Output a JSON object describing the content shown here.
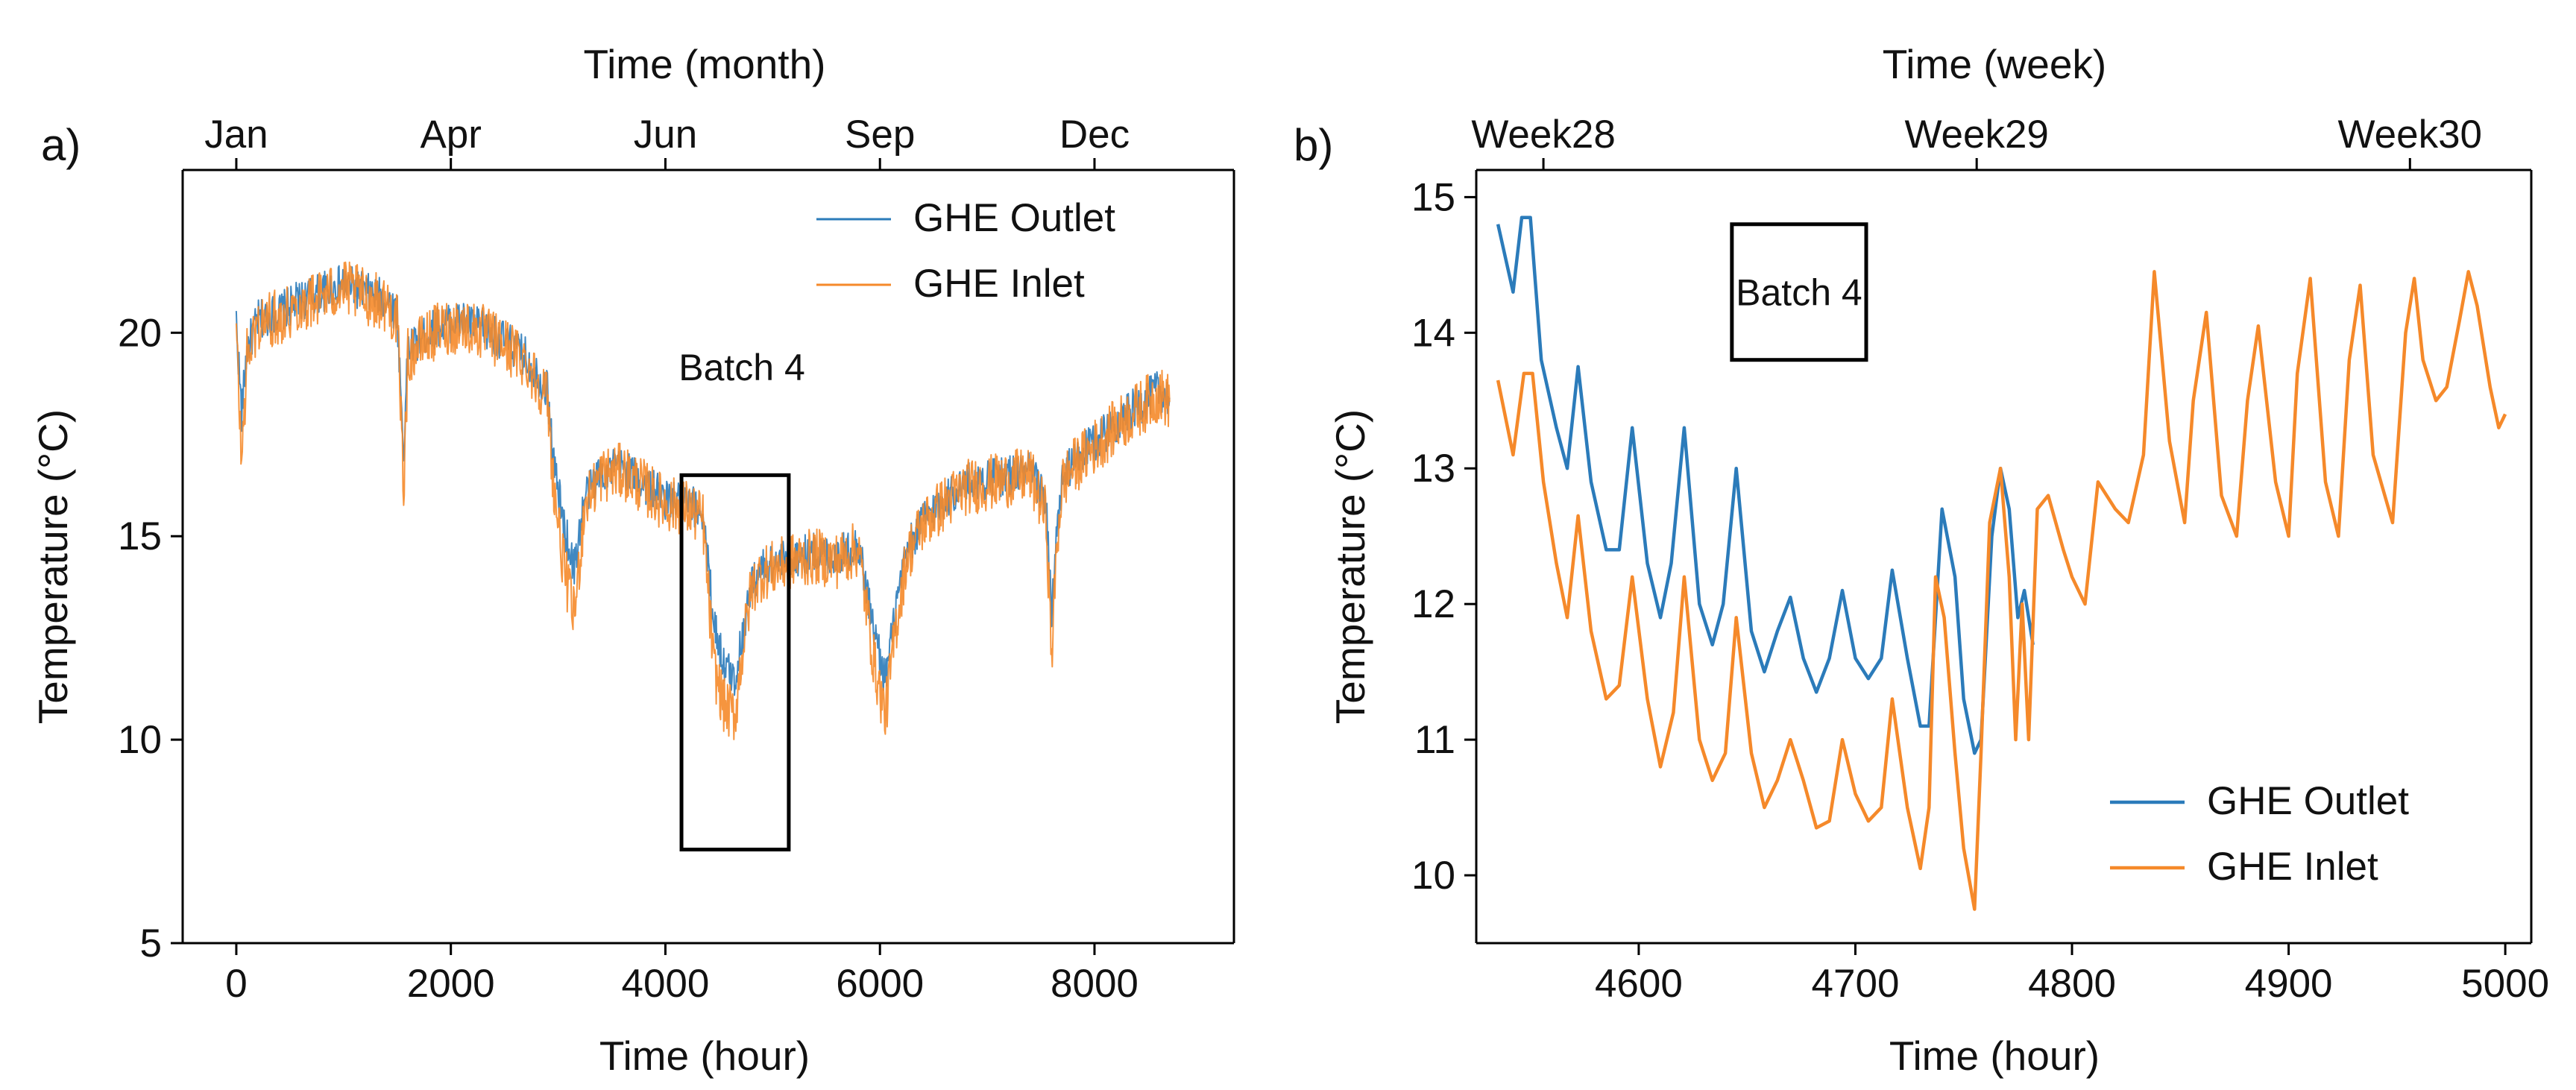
{
  "colors": {
    "outlet": "#2b7bba",
    "inlet": "#f5892a",
    "axis": "#000000",
    "box": "#000000"
  },
  "chart_data": [
    {
      "type": "line",
      "panel_label": "a)",
      "xlabel": "Time (hour)",
      "ylabel": "Temperature (°C)",
      "top_xlabel": "Time (month)",
      "xlim": [
        -500,
        9300
      ],
      "ylim": [
        5,
        24
      ],
      "xticks": [
        {
          "value": 0,
          "label": "0"
        },
        {
          "value": 2000,
          "label": "2000"
        },
        {
          "value": 4000,
          "label": "4000"
        },
        {
          "value": 6000,
          "label": "6000"
        },
        {
          "value": 8000,
          "label": "8000"
        }
      ],
      "yticks": [
        {
          "value": 5,
          "label": "5"
        },
        {
          "value": 10,
          "label": "10"
        },
        {
          "value": 15,
          "label": "15"
        },
        {
          "value": 20,
          "label": "20"
        }
      ],
      "top_ticks": [
        {
          "value": 0,
          "label": "Jan"
        },
        {
          "value": 2000,
          "label": "Apr"
        },
        {
          "value": 4000,
          "label": "Jun"
        },
        {
          "value": 6000,
          "label": "Sep"
        },
        {
          "value": 8000,
          "label": "Dec"
        }
      ],
      "legend": {
        "placement": "top-right",
        "entries": [
          "GHE Outlet",
          "GHE Inlet"
        ]
      },
      "annotation": {
        "text": "Batch 4",
        "box_x": [
          4150,
          5150
        ],
        "box_y": [
          7.3,
          16.5
        ]
      },
      "series": [
        {
          "name": "GHE Outlet",
          "noise": 0.5,
          "x": [
            0,
            50,
            100,
            200,
            400,
            600,
            800,
            1000,
            1200,
            1400,
            1500,
            1560,
            1600,
            1700,
            1900,
            2100,
            2300,
            2500,
            2700,
            2900,
            2960,
            3050,
            3150,
            3250,
            3400,
            3600,
            3800,
            4000,
            4200,
            4350,
            4450,
            4550,
            4650,
            4700,
            4800,
            4900,
            5000,
            5200,
            5400,
            5600,
            5800,
            5950,
            6050,
            6150,
            6250,
            6400,
            6600,
            6800,
            7000,
            7200,
            7400,
            7550,
            7600,
            7650,
            7700,
            7800,
            8000,
            8200,
            8400,
            8600,
            8700
          ],
          "y": [
            20.3,
            18.0,
            19.6,
            20.3,
            20.5,
            20.8,
            21.0,
            21.2,
            21.0,
            20.8,
            20.5,
            17.0,
            19.6,
            19.8,
            20.2,
            20.3,
            20.1,
            19.8,
            19.4,
            18.6,
            16.8,
            15.3,
            14.2,
            16.0,
            16.6,
            16.7,
            16.3,
            15.9,
            15.8,
            15.6,
            12.9,
            11.8,
            11.5,
            12.3,
            13.8,
            14.2,
            14.3,
            14.5,
            14.6,
            14.5,
            14.8,
            12.6,
            11.5,
            13.2,
            14.6,
            15.4,
            15.9,
            16.3,
            16.4,
            16.5,
            16.6,
            15.9,
            13.0,
            15.0,
            16.4,
            16.8,
            17.3,
            17.8,
            18.2,
            18.6,
            18.4
          ]
        },
        {
          "name": "GHE Inlet",
          "noise": 0.7,
          "x": [
            0,
            50,
            100,
            200,
            400,
            600,
            800,
            1000,
            1200,
            1400,
            1500,
            1560,
            1600,
            1700,
            1900,
            2100,
            2300,
            2500,
            2700,
            2900,
            2960,
            3050,
            3150,
            3250,
            3400,
            3600,
            3800,
            4000,
            4200,
            4350,
            4450,
            4550,
            4650,
            4700,
            4800,
            4900,
            5000,
            5200,
            5400,
            5600,
            5800,
            5950,
            6050,
            6150,
            6250,
            6400,
            6600,
            6800,
            7000,
            7200,
            7400,
            7550,
            7600,
            7650,
            7700,
            7800,
            8000,
            8200,
            8400,
            8600,
            8700
          ],
          "y": [
            20.0,
            16.8,
            19.4,
            20.2,
            20.4,
            20.7,
            20.9,
            21.1,
            20.9,
            20.7,
            20.3,
            16.2,
            19.4,
            19.7,
            20.1,
            20.2,
            20.0,
            19.7,
            19.3,
            18.4,
            16.2,
            14.3,
            13.0,
            15.8,
            16.5,
            16.6,
            16.2,
            15.8,
            15.7,
            15.4,
            11.8,
            10.8,
            10.6,
            11.8,
            13.7,
            14.1,
            14.2,
            14.4,
            14.5,
            14.4,
            14.7,
            11.8,
            10.6,
            12.8,
            14.5,
            15.3,
            15.8,
            16.2,
            16.3,
            16.4,
            16.5,
            15.5,
            12.0,
            14.8,
            16.3,
            16.7,
            17.2,
            17.7,
            18.1,
            18.5,
            18.3
          ]
        }
      ]
    },
    {
      "type": "line",
      "panel_label": "b)",
      "xlabel": "Time (hour)",
      "ylabel": "Temperature (°C)",
      "top_xlabel": "Time (week)",
      "xlim": [
        4525,
        5012
      ],
      "ylim": [
        9.5,
        15.2
      ],
      "xticks": [
        {
          "value": 4600,
          "label": "4600"
        },
        {
          "value": 4700,
          "label": "4700"
        },
        {
          "value": 4800,
          "label": "4800"
        },
        {
          "value": 4900,
          "label": "4900"
        },
        {
          "value": 5000,
          "label": "5000"
        }
      ],
      "yticks": [
        {
          "value": 10,
          "label": "10"
        },
        {
          "value": 11,
          "label": "11"
        },
        {
          "value": 12,
          "label": "12"
        },
        {
          "value": 13,
          "label": "13"
        },
        {
          "value": 14,
          "label": "14"
        },
        {
          "value": 15,
          "label": "15"
        }
      ],
      "top_ticks": [
        {
          "value": 4556,
          "label": "Week28"
        },
        {
          "value": 4756,
          "label": "Week29"
        },
        {
          "value": 4956,
          "label": "Week30"
        }
      ],
      "legend": {
        "placement": "bottom-right",
        "entries": [
          "GHE Outlet",
          "GHE Inlet"
        ]
      },
      "annotation": {
        "text": "Batch 4",
        "box_x": [
          4643,
          4705
        ],
        "box_y": [
          13.8,
          14.8
        ]
      },
      "series": [
        {
          "name": "GHE Outlet",
          "noise": 0,
          "x": [
            4535,
            4542,
            4546,
            4550,
            4555,
            4562,
            4567,
            4572,
            4578,
            4585,
            4591,
            4597,
            4604,
            4610,
            4615,
            4621,
            4628,
            4634,
            4639,
            4645,
            4652,
            4658,
            4664,
            4670,
            4676,
            4682,
            4688,
            4694,
            4700,
            4706,
            4712,
            4717,
            4724,
            4730,
            4734,
            4740,
            4746,
            4750,
            4755,
            4758,
            4763,
            4767,
            4771,
            4775,
            4778,
            4782
          ],
          "y": [
            14.8,
            14.3,
            14.85,
            14.85,
            13.8,
            13.3,
            13.0,
            13.75,
            12.9,
            12.4,
            12.4,
            13.3,
            12.3,
            11.9,
            12.3,
            13.3,
            12.0,
            11.7,
            12.0,
            13.0,
            11.8,
            11.5,
            11.8,
            12.05,
            11.6,
            11.35,
            11.6,
            12.1,
            11.6,
            11.45,
            11.6,
            12.25,
            11.6,
            11.1,
            11.1,
            12.7,
            12.2,
            11.3,
            10.9,
            11.0,
            12.5,
            13.0,
            12.7,
            11.9,
            12.1,
            11.7
          ]
        },
        {
          "name": "GHE Inlet",
          "noise": 0,
          "x": [
            4535,
            4542,
            4547,
            4551,
            4556,
            4562,
            4567,
            4572,
            4578,
            4585,
            4591,
            4597,
            4604,
            4610,
            4616,
            4621,
            4628,
            4634,
            4640,
            4645,
            4652,
            4658,
            4664,
            4670,
            4676,
            4682,
            4688,
            4694,
            4700,
            4706,
            4712,
            4717,
            4724,
            4730,
            4734,
            4737,
            4741,
            4746,
            4750,
            4755,
            4758,
            4762,
            4767,
            4771,
            4774,
            4777,
            4780,
            4784,
            4789,
            4796,
            4800,
            4806,
            4812,
            4820,
            4826,
            4833,
            4838,
            4845,
            4852,
            4856,
            4862,
            4869,
            4876,
            4881,
            4886,
            4894,
            4900,
            4904,
            4910,
            4917,
            4923,
            4928,
            4933,
            4939,
            4948,
            4954,
            4958,
            4962,
            4968,
            4973,
            4979,
            4983,
            4987,
            4993,
            4997,
            5000
          ],
          "y": [
            13.65,
            13.1,
            13.7,
            13.7,
            12.9,
            12.3,
            11.9,
            12.65,
            11.8,
            11.3,
            11.4,
            12.2,
            11.3,
            10.8,
            11.2,
            12.2,
            11.0,
            10.7,
            10.9,
            11.9,
            10.9,
            10.5,
            10.7,
            11.0,
            10.7,
            10.35,
            10.4,
            11.0,
            10.6,
            10.4,
            10.5,
            11.3,
            10.5,
            10.05,
            10.5,
            12.2,
            11.9,
            10.9,
            10.2,
            9.75,
            10.9,
            12.6,
            13.0,
            12.2,
            11.0,
            12.0,
            11.0,
            12.7,
            12.8,
            12.4,
            12.2,
            12.0,
            12.9,
            12.7,
            12.6,
            13.1,
            14.45,
            13.2,
            12.6,
            13.5,
            14.15,
            12.8,
            12.5,
            13.5,
            14.05,
            12.9,
            12.5,
            13.7,
            14.4,
            12.9,
            12.5,
            13.8,
            14.35,
            13.1,
            12.6,
            14.0,
            14.4,
            13.8,
            13.5,
            13.6,
            14.1,
            14.45,
            14.2,
            13.6,
            13.3,
            13.4
          ]
        }
      ]
    }
  ]
}
